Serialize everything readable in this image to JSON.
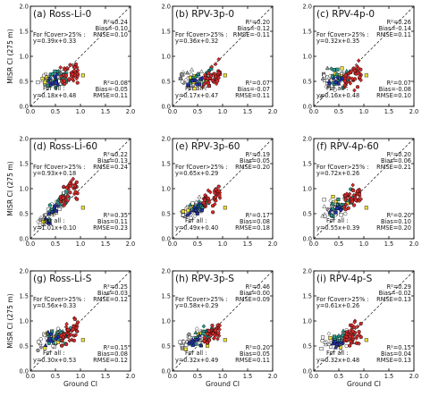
{
  "chart_data": [
    {
      "type": "scatter",
      "panel": "(a) Ross-Li-0",
      "xlabel": "",
      "ylabel": "MISR CI (275 m)",
      "xlim": [
        0.0,
        2.0
      ],
      "ylim": [
        0.0,
        2.0
      ],
      "xticks": [
        "0.0",
        "0.5",
        "1.0",
        "1.5",
        "2.0"
      ],
      "yticks": [
        "0.0",
        "0.5",
        "1.0",
        "1.5",
        "2.0"
      ],
      "stats_high": {
        "header": "For fCover>25% :",
        "eq": "y=0.39x+0.33",
        "r2": "R²=0.24",
        "bias": "Bias=-0.10",
        "rmse": "RMSE=0.10"
      },
      "stats_all": {
        "header": "For all :",
        "eq": "y=0.18x+0.48",
        "r2": "R²=0.08",
        "bias": "Bias=-0.05",
        "rmse": "RMSE=0.11"
      },
      "fit_high": [
        0.39,
        0.33
      ],
      "fit_all": [
        0.18,
        0.48
      ]
    },
    {
      "type": "scatter",
      "panel": "(b) RPV-3p-0",
      "xlabel": "",
      "ylabel": "",
      "xlim": [
        0.0,
        2.0
      ],
      "ylim": [
        0.0,
        2.0
      ],
      "xticks": [
        "0.0",
        "0.5",
        "1.0",
        "1.5",
        "2.0"
      ],
      "yticks": [
        "0.0",
        "0.5",
        "1.0",
        "1.5",
        "2.0"
      ],
      "stats_high": {
        "header": "For fCover>25% :",
        "eq": "y=0.36x+0.32",
        "r2": "R²=0.20",
        "bias": "Bias=-0.12",
        "rmse": "RMSE=-0.11"
      },
      "stats_all": {
        "header": "For all :",
        "eq": "y=0.17x+0.47",
        "r2": "R²=0.07",
        "bias": "Bias=-0.07",
        "rmse": "RMSE=0.11"
      },
      "fit_high": [
        0.36,
        0.32
      ],
      "fit_all": [
        0.17,
        0.47
      ]
    },
    {
      "type": "scatter",
      "panel": "(c) RPV-4p-0",
      "xlabel": "",
      "ylabel": "",
      "xlim": [
        0.0,
        2.0
      ],
      "ylim": [
        0.0,
        2.0
      ],
      "xticks": [
        "0.0",
        "0.5",
        "1.0",
        "1.5",
        "2.0"
      ],
      "yticks": [
        "0.0",
        "0.5",
        "1.0",
        "1.5",
        "2.0"
      ],
      "stats_high": {
        "header": "For fCover>25% :",
        "eq": "y=0.32x+0.35",
        "r2": "R²=0.26",
        "bias": "Bias=-0.14",
        "rmse": "RMSE=0.11"
      },
      "stats_all": {
        "header": "For all :",
        "eq": "y=0.16x+0.48",
        "r2": "R²=0.07",
        "bias": "Bias=-0.08",
        "rmse": "RMSE=0.10"
      },
      "fit_high": [
        0.32,
        0.35
      ],
      "fit_all": [
        0.16,
        0.48
      ]
    },
    {
      "type": "scatter",
      "panel": "(d) Ross-Li-60",
      "xlabel": "",
      "ylabel": "MISR CI (275 m)",
      "xlim": [
        0.0,
        2.0
      ],
      "ylim": [
        0.0,
        2.0
      ],
      "xticks": [
        "0.0",
        "0.5",
        "1.0",
        "1.5",
        "2.0"
      ],
      "yticks": [
        "0.0",
        "0.5",
        "1.0",
        "1.5",
        "2.0"
      ],
      "stats_high": {
        "header": "For fCover>25% :",
        "eq": "y=0.93x+0.18",
        "r2": "R²=0.22",
        "bias": "Bias=0.13",
        "rmse": "RMSE=0.24"
      },
      "stats_all": {
        "header": "For all :",
        "eq": "y=1.01x+0.10",
        "r2": "R²=0.35",
        "bias": "Bias=0.11",
        "rmse": "RMSE=0.23"
      },
      "fit_high": [
        0.93,
        0.18
      ],
      "fit_all": [
        1.01,
        0.1
      ]
    },
    {
      "type": "scatter",
      "panel": "(e) RPV-3p-60",
      "xlabel": "",
      "ylabel": "",
      "xlim": [
        0.0,
        2.0
      ],
      "ylim": [
        0.0,
        2.0
      ],
      "xticks": [
        "0.0",
        "0.5",
        "1.0",
        "1.5",
        "2.0"
      ],
      "yticks": [
        "0.0",
        "0.5",
        "1.0",
        "1.5",
        "2.0"
      ],
      "stats_high": {
        "header": "For fCover>25% :",
        "eq": "y=0.65x+0.29",
        "r2": "R²=0.19",
        "bias": "Bias=0.05",
        "rmse": "RMSE=0.20"
      },
      "stats_all": {
        "header": "For all :",
        "eq": "y=0.49x+0.40",
        "r2": "R²=0.17",
        "bias": "Bias=0.08",
        "rmse": "RMSE=0.18"
      },
      "fit_high": [
        0.65,
        0.29
      ],
      "fit_all": [
        0.49,
        0.4
      ]
    },
    {
      "type": "scatter",
      "panel": "(f) RPV-4p-60",
      "xlabel": "",
      "ylabel": "",
      "xlim": [
        0.0,
        2.0
      ],
      "ylim": [
        0.0,
        2.0
      ],
      "xticks": [
        "0.0",
        "0.5",
        "1.0",
        "1.5",
        "2.0"
      ],
      "yticks": [
        "0.0",
        "0.5",
        "1.0",
        "1.5",
        "2.0"
      ],
      "stats_high": {
        "header": "For fCover>25% :",
        "eq": "y=0.72x+0.26",
        "r2": "R²=0.20",
        "bias": "Bias=0.06",
        "rmse": "RMSE=0.21"
      },
      "stats_all": {
        "header": "For all :",
        "eq": "y=0.55x+0.39",
        "r2": "R²=0.20",
        "bias": "Bias=0.10",
        "rmse": "RMSE=0.20"
      },
      "fit_high": [
        0.72,
        0.26
      ],
      "fit_all": [
        0.55,
        0.39
      ]
    },
    {
      "type": "scatter",
      "panel": "(g) Ross-Li-S",
      "xlabel": "Ground CI",
      "ylabel": "MISR CI (275 m)",
      "xlim": [
        0.0,
        2.0
      ],
      "ylim": [
        0.0,
        2.0
      ],
      "xticks": [
        "0.0",
        "0.5",
        "1.0",
        "1.5",
        "2.0"
      ],
      "yticks": [
        "0.0",
        "0.5",
        "1.0",
        "1.5",
        "2.0"
      ],
      "stats_high": {
        "header": "For fCover>25% :",
        "eq": "y=0.56x+0.33",
        "r2": "R²=0.25",
        "bias": "Bias=0.03",
        "rmse": "RMSE=0.12"
      },
      "stats_all": {
        "header": "For all :",
        "eq": "y=0.30x+0.53",
        "r2": "R²=0.15",
        "bias": "Bias=0.08",
        "rmse": "RMSE=0.12"
      },
      "fit_high": [
        0.56,
        0.33
      ],
      "fit_all": [
        0.3,
        0.53
      ]
    },
    {
      "type": "scatter",
      "panel": "(h) RPV-3p-S",
      "xlabel": "Ground CI",
      "ylabel": "",
      "xlim": [
        0.0,
        2.0
      ],
      "ylim": [
        0.0,
        2.0
      ],
      "xticks": [
        "0.0",
        "0.5",
        "1.0",
        "1.5",
        "2.0"
      ],
      "yticks": [
        "0.0",
        "0.5",
        "1.0",
        "1.5",
        "2.0"
      ],
      "stats_high": {
        "header": "For fCover>25% :",
        "eq": "y=0.58x+0.29",
        "r2": "R²=0.46",
        "bias": "Bias=0.00",
        "rmse": "RMSE=0.09"
      },
      "stats_all": {
        "header": "For all :",
        "eq": "y=0.32x+0.49",
        "r2": "R²=0.20",
        "bias": "Bias=0.05",
        "rmse": "RMSE=0.11"
      },
      "fit_high": [
        0.58,
        0.29
      ],
      "fit_all": [
        0.32,
        0.49
      ]
    },
    {
      "type": "scatter",
      "panel": "(i) RPV-4p-S",
      "xlabel": "Ground CI",
      "ylabel": "",
      "xlim": [
        0.0,
        2.0
      ],
      "ylim": [
        0.0,
        2.0
      ],
      "xticks": [
        "0.0",
        "0.5",
        "1.0",
        "1.5",
        "2.0"
      ],
      "yticks": [
        "0.0",
        "0.5",
        "1.0",
        "1.5",
        "2.0"
      ],
      "stats_high": {
        "header": "For fCover>25% :",
        "eq": "y=0.61x+0.26",
        "r2": "R²=0.29",
        "bias": "Bias=-0.02",
        "rmse": "RMSE=0.13"
      },
      "stats_all": {
        "header": "For all :",
        "eq": "y=0.32x+0.48",
        "r2": "R²=0.15",
        "bias": "Bias=0.04",
        "rmse": "RMSE=0.13"
      },
      "fit_high": [
        0.61,
        0.26
      ],
      "fit_all": [
        0.32,
        0.48
      ]
    }
  ],
  "colors": {
    "high_points": "#d42a2a",
    "teal_points": "#2a9a8c",
    "blue_points": "#2633a6",
    "yellow_points": "#f0e030",
    "white_points": "#ffffff",
    "gray_points": "#9a9a9a",
    "diagonal": "#333333"
  },
  "icons": {
    "marker_square": "square-marker",
    "marker_circle": "circle-marker",
    "marker_triangle": "triangle-marker",
    "marker_diamond": "diamond-marker"
  }
}
